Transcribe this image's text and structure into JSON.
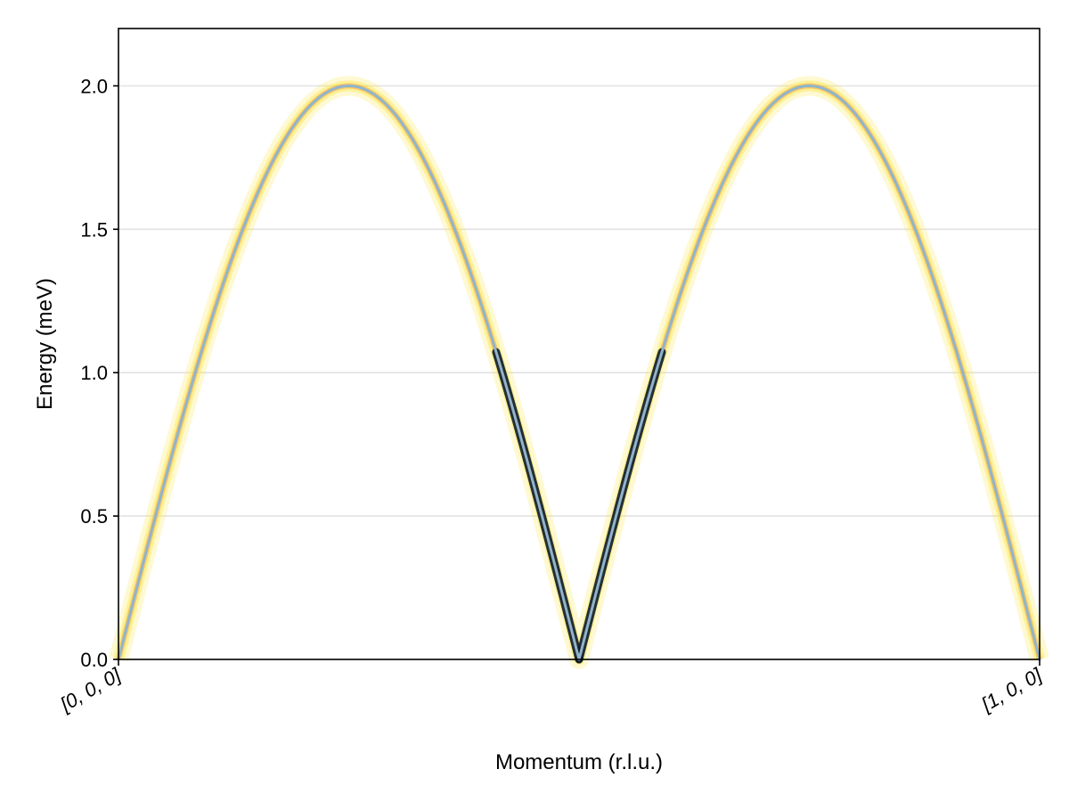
{
  "chart_data": {
    "type": "line",
    "title": "",
    "xlabel": "Momentum (r.l.u.)",
    "ylabel": "Energy (meV)",
    "xlim": [
      0,
      1
    ],
    "ylim": [
      0,
      2.2
    ],
    "yticks": [
      0.0,
      0.5,
      1.0,
      1.5,
      2.0
    ],
    "ytick_labels": [
      "0.0",
      "0.5",
      "1.0",
      "1.5",
      "2.0"
    ],
    "xticks": [
      0,
      1
    ],
    "xtick_labels": [
      "[0, 0, 0]",
      "[1, 0, 0]"
    ],
    "grid": "horizontal",
    "dispersion": {
      "description_formula": "E(k) = 2*|sin(2*pi*k)|",
      "x": [
        0,
        0.05,
        0.1,
        0.15,
        0.2,
        0.25,
        0.3,
        0.35,
        0.4,
        0.45,
        0.5,
        0.55,
        0.6,
        0.65,
        0.7,
        0.75,
        0.8,
        0.85,
        0.9,
        0.95,
        1.0
      ],
      "y": [
        0,
        0.618,
        1.176,
        1.618,
        1.902,
        2.0,
        1.902,
        1.618,
        1.176,
        0.618,
        0,
        0.618,
        1.176,
        1.618,
        1.902,
        2.0,
        1.902,
        1.618,
        1.176,
        0.618,
        0
      ]
    },
    "colors": {
      "dispersion_line": "#8fb4cc",
      "intensity_high": "#0d1b2a",
      "intensity_mid": "#f2a541",
      "intensity_low": "#fde74c",
      "grid": "#e2e2e2",
      "axis": "#000000"
    }
  }
}
